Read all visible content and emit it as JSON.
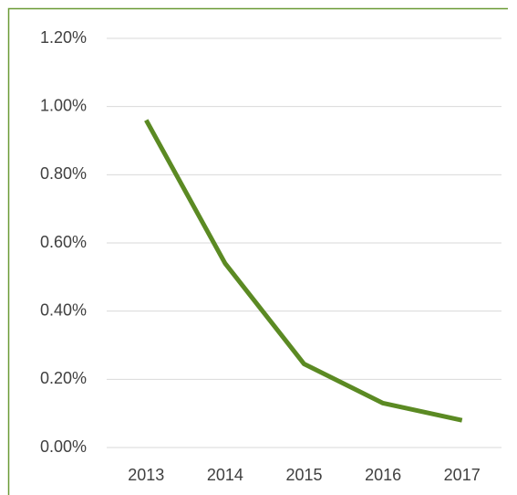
{
  "chart_data": {
    "type": "line",
    "categories": [
      "2013",
      "2014",
      "2015",
      "2016",
      "2017"
    ],
    "series": [
      {
        "color": "#5b8a23",
        "values": [
          0.96,
          0.54,
          0.245,
          0.13,
          0.08
        ]
      }
    ],
    "ylim": [
      0,
      1.2
    ],
    "yticks": [
      {
        "value": 0,
        "label": "0.00%"
      },
      {
        "value": 0.2,
        "label": "0.20%"
      },
      {
        "value": 0.4,
        "label": "0.40%"
      },
      {
        "value": 0.6,
        "label": "0.60%"
      },
      {
        "value": 0.8,
        "label": "0.80%"
      },
      {
        "value": 1.0,
        "label": "1.00%"
      },
      {
        "value": 1.2,
        "label": "1.20%"
      }
    ],
    "grid": true
  }
}
